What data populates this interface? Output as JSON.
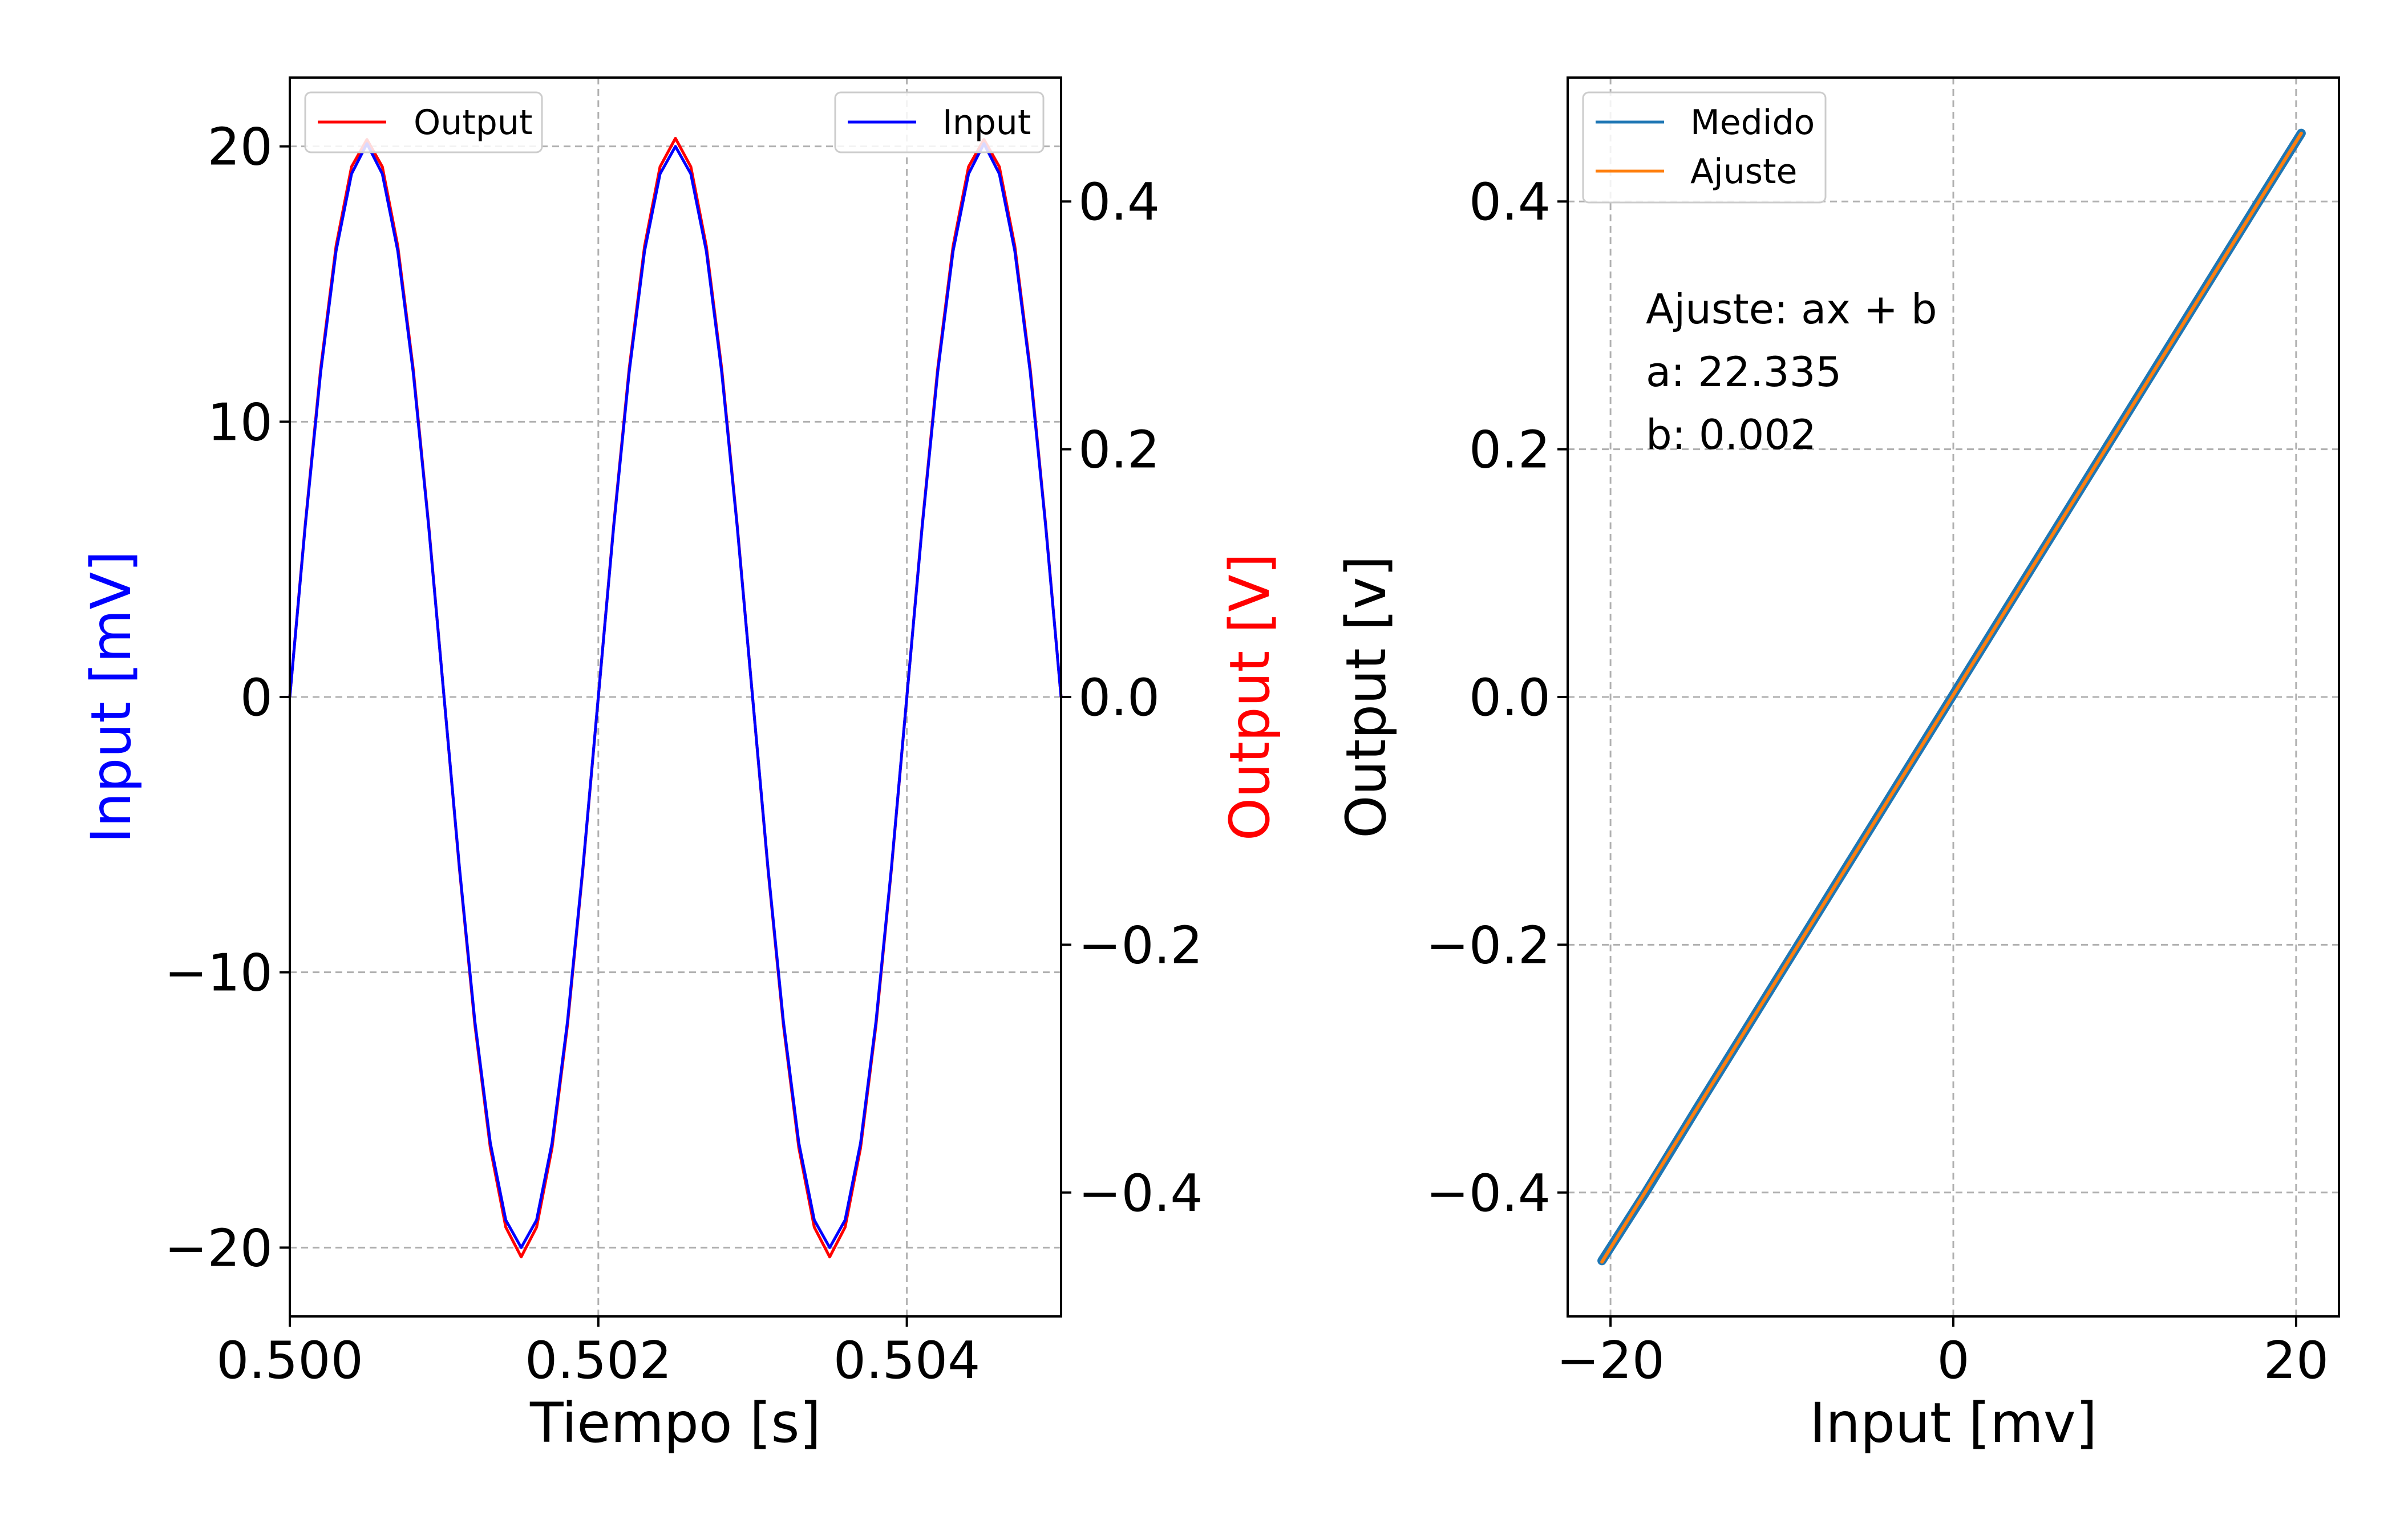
{
  "chart_data": [
    {
      "type": "line",
      "xlabel": "Tiempo [s]",
      "ylabel_left": "Input [mV]",
      "ylabel_right": "Output [V]",
      "ylabel_left_color": "#0000ff",
      "ylabel_right_color": "#ff0000",
      "xlim": [
        0.5,
        0.505
      ],
      "ylim_left": [
        -22.5,
        22.5
      ],
      "ylim_right": [
        -0.5,
        0.5
      ],
      "xticks": [
        0.5,
        0.502,
        0.504
      ],
      "xtick_labels": [
        "0.500",
        "0.502",
        "0.504"
      ],
      "yticks_left": [
        -20,
        -10,
        0,
        10,
        20
      ],
      "ytick_labels_left": [
        "−20",
        "−10",
        "0",
        "10",
        "20"
      ],
      "yticks_right": [
        -0.4,
        -0.2,
        0.0,
        0.2,
        0.4
      ],
      "ytick_labels_right": [
        "−0.4",
        "−0.2",
        "0.0",
        "0.2",
        "0.4"
      ],
      "grid": true,
      "legends": [
        {
          "entries": [
            "Output"
          ],
          "placement": "upper left"
        },
        {
          "entries": [
            "Input"
          ],
          "placement": "upper right"
        }
      ],
      "series": [
        {
          "name": "Output",
          "axis": "right",
          "color": "#ff0000",
          "x": [
            0.5,
            0.5001,
            0.5002,
            0.5003,
            0.5004,
            0.5005,
            0.5006,
            0.5007,
            0.5008,
            0.5009,
            0.501,
            0.5011,
            0.5012,
            0.5013,
            0.5014,
            0.5015,
            0.5016,
            0.5017,
            0.5018,
            0.5019,
            0.502,
            0.5021,
            0.5022,
            0.5023,
            0.5024,
            0.5025,
            0.5026,
            0.5027,
            0.5028,
            0.5029,
            0.503,
            0.5031,
            0.5032,
            0.5033,
            0.5034,
            0.5035,
            0.5036,
            0.5037,
            0.5038,
            0.5039,
            0.504,
            0.5041,
            0.5042,
            0.5043,
            0.5044,
            0.5045,
            0.5046,
            0.5047,
            0.5048,
            0.5049,
            0.505
          ],
          "y": [
            0.0,
            0.139,
            0.265,
            0.364,
            0.428,
            0.45,
            0.428,
            0.364,
            0.265,
            0.139,
            0.0,
            -0.139,
            -0.265,
            -0.364,
            -0.428,
            -0.452,
            -0.428,
            -0.364,
            -0.265,
            -0.139,
            0.0,
            0.139,
            0.265,
            0.364,
            0.428,
            0.451,
            0.428,
            0.364,
            0.265,
            0.139,
            0.0,
            -0.139,
            -0.265,
            -0.364,
            -0.428,
            -0.452,
            -0.428,
            -0.364,
            -0.265,
            -0.139,
            0.0,
            0.139,
            0.265,
            0.364,
            0.428,
            0.45,
            0.428,
            0.364,
            0.265,
            0.139,
            0.0
          ]
        },
        {
          "name": "Input",
          "axis": "left",
          "color": "#0000ff",
          "x": [
            0.5,
            0.5001,
            0.5002,
            0.5003,
            0.5004,
            0.5005,
            0.5006,
            0.5007,
            0.5008,
            0.5009,
            0.501,
            0.5011,
            0.5012,
            0.5013,
            0.5014,
            0.5015,
            0.5016,
            0.5017,
            0.5018,
            0.5019,
            0.502,
            0.5021,
            0.5022,
            0.5023,
            0.5024,
            0.5025,
            0.5026,
            0.5027,
            0.5028,
            0.5029,
            0.503,
            0.5031,
            0.5032,
            0.5033,
            0.5034,
            0.5035,
            0.5036,
            0.5037,
            0.5038,
            0.5039,
            0.504,
            0.5041,
            0.5042,
            0.5043,
            0.5044,
            0.5045,
            0.5046,
            0.5047,
            0.5048,
            0.5049,
            0.505
          ],
          "y": [
            0.0,
            6.2,
            11.8,
            16.2,
            19.0,
            20.1,
            19.0,
            16.2,
            11.8,
            6.2,
            0.0,
            -6.2,
            -11.8,
            -16.2,
            -19.0,
            -20.0,
            -19.0,
            -16.2,
            -11.8,
            -6.2,
            0.0,
            6.2,
            11.8,
            16.2,
            19.0,
            20.0,
            19.0,
            16.2,
            11.8,
            6.2,
            0.0,
            -6.2,
            -11.8,
            -16.2,
            -19.0,
            -20.0,
            -19.0,
            -16.2,
            -11.8,
            -6.2,
            0.0,
            6.2,
            11.8,
            16.2,
            19.0,
            20.1,
            19.0,
            16.2,
            11.8,
            6.2,
            0.0
          ]
        }
      ]
    },
    {
      "type": "line",
      "xlabel": "Input [mv]",
      "ylabel": "Output [v]",
      "xlim": [
        -22.5,
        22.5
      ],
      "ylim": [
        -0.5,
        0.5
      ],
      "xticks": [
        -20,
        0,
        20
      ],
      "xtick_labels": [
        "−20",
        "0",
        "20"
      ],
      "yticks": [
        -0.4,
        -0.2,
        0.0,
        0.2,
        0.4
      ],
      "ytick_labels": [
        "−0.4",
        "−0.2",
        "0.0",
        "0.2",
        "0.4"
      ],
      "grid": true,
      "legend": {
        "entries": [
          "Medido",
          "Ajuste"
        ],
        "placement": "upper left"
      },
      "annotation": {
        "line1": "Ajuste: ax + b",
        "line2": "a: 22.335",
        "line3": "b:  0.002"
      },
      "series": [
        {
          "name": "Medido",
          "color": "#1f77b4",
          "x": [
            -20.5,
            -18,
            -15,
            -12,
            -9,
            -6,
            -3,
            0,
            3,
            6,
            9,
            12,
            15,
            18,
            20.3
          ],
          "y": [
            -0.455,
            -0.401,
            -0.333,
            -0.266,
            -0.199,
            -0.132,
            -0.065,
            0.002,
            0.069,
            0.136,
            0.203,
            0.27,
            0.337,
            0.404,
            0.455
          ]
        },
        {
          "name": "Ajuste",
          "color": "#ff7f0e",
          "x": [
            -20.5,
            20.3
          ],
          "y": [
            -0.456,
            0.455
          ]
        }
      ]
    }
  ]
}
